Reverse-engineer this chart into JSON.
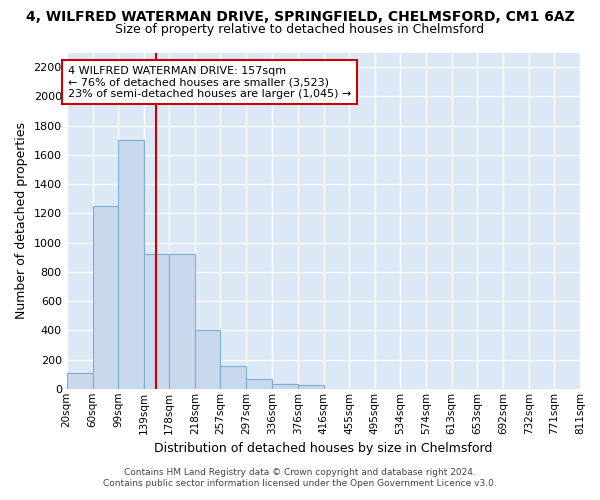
{
  "title": "4, WILFRED WATERMAN DRIVE, SPRINGFIELD, CHELMSFORD, CM1 6AZ",
  "subtitle": "Size of property relative to detached houses in Chelmsford",
  "xlabel": "Distribution of detached houses by size in Chelmsford",
  "ylabel": "Number of detached properties",
  "bar_color": "#c8d8ed",
  "bar_edge_color": "#7aafd4",
  "bg_axes": "#dce8f5",
  "bg_fig": "#ffffff",
  "grid_color": "#ffffff",
  "vline_color": "#cc0000",
  "vline_x": 157,
  "bins": [
    20,
    60,
    99,
    139,
    178,
    218,
    257,
    297,
    336,
    376,
    416,
    455,
    495,
    534,
    574,
    613,
    653,
    692,
    732,
    771,
    811
  ],
  "bin_labels": [
    "20sqm",
    "60sqm",
    "99sqm",
    "139sqm",
    "178sqm",
    "218sqm",
    "257sqm",
    "297sqm",
    "336sqm",
    "376sqm",
    "416sqm",
    "455sqm",
    "495sqm",
    "534sqm",
    "574sqm",
    "613sqm",
    "653sqm",
    "692sqm",
    "732sqm",
    "771sqm",
    "811sqm"
  ],
  "values": [
    110,
    1250,
    1700,
    920,
    920,
    400,
    155,
    65,
    35,
    25,
    0,
    0,
    0,
    0,
    0,
    0,
    0,
    0,
    0,
    0
  ],
  "ylim": [
    0,
    2300
  ],
  "yticks": [
    0,
    200,
    400,
    600,
    800,
    1000,
    1200,
    1400,
    1600,
    1800,
    2000,
    2200
  ],
  "annotation_line1": "4 WILFRED WATERMAN DRIVE: 157sqm",
  "annotation_line2": "← 76% of detached houses are smaller (3,523)",
  "annotation_line3": "23% of semi-detached houses are larger (1,045) →",
  "annot_box_fc": "#ffffff",
  "annot_box_ec": "#cc0000",
  "footnote1": "Contains HM Land Registry data © Crown copyright and database right 2024.",
  "footnote2": "Contains public sector information licensed under the Open Government Licence v3.0."
}
